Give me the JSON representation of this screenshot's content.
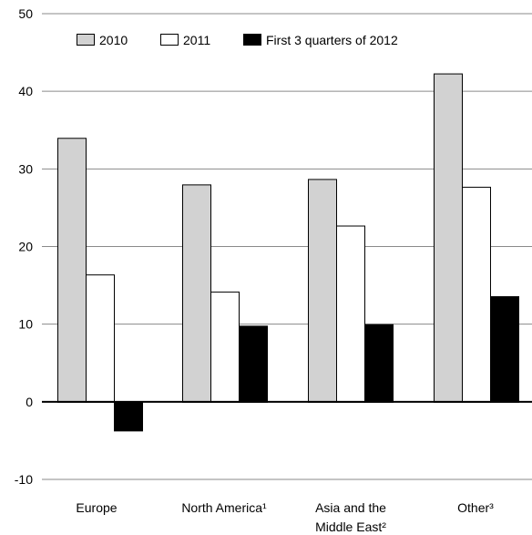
{
  "chart_data": {
    "type": "bar",
    "title": "",
    "xlabel": "",
    "ylabel": "",
    "categories": [
      "Europe",
      "North America¹",
      "Asia and the\nMiddle East²",
      "Other³"
    ],
    "series": [
      {
        "name": "2010",
        "values": [
          34,
          28,
          28.7,
          42.3
        ],
        "color": "#d2d2d2"
      },
      {
        "name": "2011",
        "values": [
          16.4,
          14.2,
          22.7,
          27.7
        ],
        "color": "#ffffff"
      },
      {
        "name": "First 3 quarters of 2012",
        "values": [
          -3.7,
          9.8,
          10,
          13.6
        ],
        "color": "#000000"
      }
    ],
    "ylim": [
      -10,
      50
    ],
    "yticks": [
      -10,
      0,
      10,
      20,
      30,
      40,
      50
    ],
    "grid": true,
    "legend_position": "top"
  }
}
